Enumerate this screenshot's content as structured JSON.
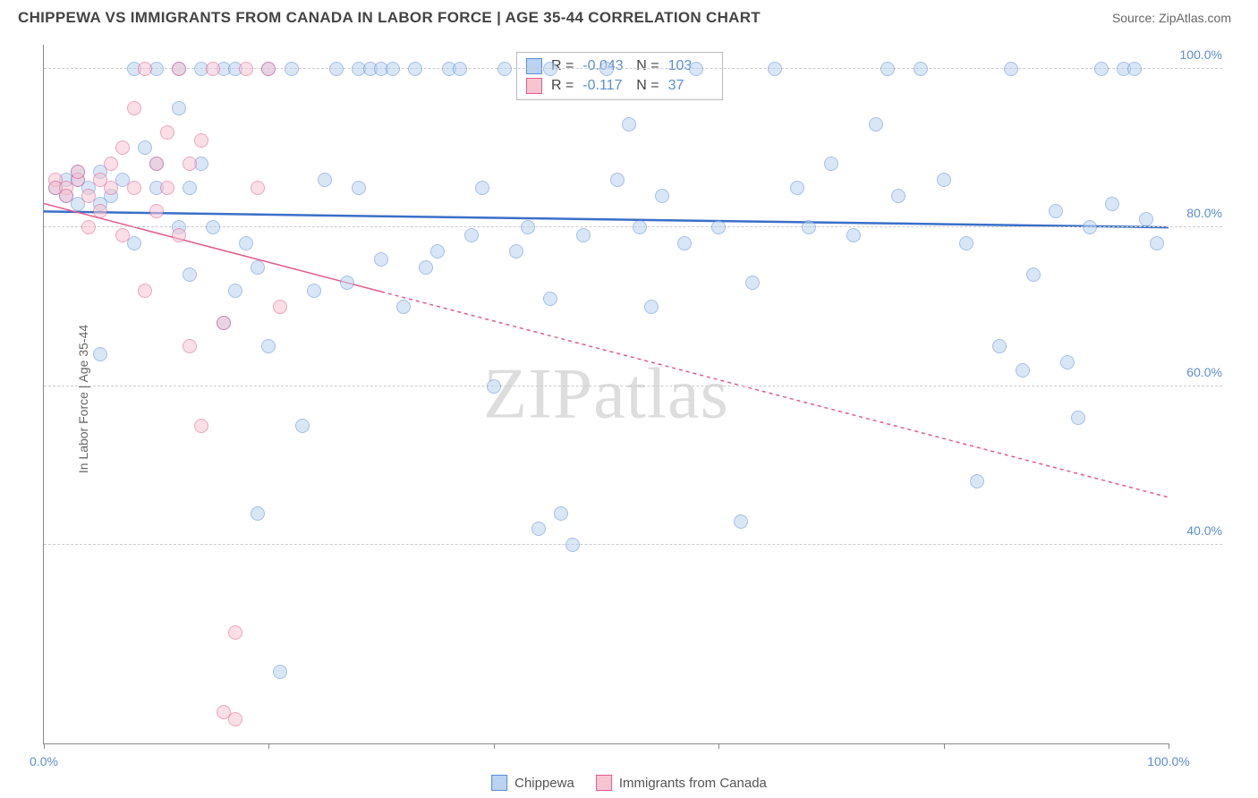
{
  "title": "CHIPPEWA VS IMMIGRANTS FROM CANADA IN LABOR FORCE | AGE 35-44 CORRELATION CHART",
  "source": "Source: ZipAtlas.com",
  "ylabel": "In Labor Force | Age 35-44",
  "watermark": "ZIPatlas",
  "xaxis": {
    "min": 0,
    "max": 100,
    "ticks": [
      0,
      20,
      40,
      60,
      80,
      100
    ],
    "end_labels": [
      "0.0%",
      "100.0%"
    ]
  },
  "yaxis": {
    "min": 15,
    "max": 103,
    "ticks": [
      40,
      60,
      80,
      100
    ],
    "tick_labels": [
      "40.0%",
      "60.0%",
      "80.0%",
      "100.0%"
    ]
  },
  "series": [
    {
      "name": "Chippewa",
      "fill": "#b9d3f0",
      "stroke": "#5b8dd6",
      "fill_opacity": 0.55,
      "marker_size": 16,
      "regression": {
        "y_at_x0": 82,
        "y_at_x100": 80,
        "color": "#3a6fc9",
        "width": 2.5,
        "dash": "none",
        "x_end": 100
      },
      "stats": {
        "R": "-0.043",
        "N": "103"
      },
      "points": [
        [
          1,
          85
        ],
        [
          2,
          86
        ],
        [
          2,
          84
        ],
        [
          3,
          86
        ],
        [
          3,
          83
        ],
        [
          3,
          87
        ],
        [
          4,
          85
        ],
        [
          5,
          83
        ],
        [
          5,
          87
        ],
        [
          5,
          64
        ],
        [
          6,
          84
        ],
        [
          7,
          86
        ],
        [
          8,
          78
        ],
        [
          8,
          100
        ],
        [
          9,
          90
        ],
        [
          10,
          100
        ],
        [
          10,
          88
        ],
        [
          10,
          85
        ],
        [
          12,
          100
        ],
        [
          12,
          80
        ],
        [
          12,
          95
        ],
        [
          13,
          85
        ],
        [
          13,
          74
        ],
        [
          14,
          88
        ],
        [
          14,
          100
        ],
        [
          15,
          80
        ],
        [
          16,
          100
        ],
        [
          16,
          68
        ],
        [
          17,
          100
        ],
        [
          17,
          72
        ],
        [
          18,
          78
        ],
        [
          19,
          44
        ],
        [
          19,
          75
        ],
        [
          20,
          100
        ],
        [
          20,
          65
        ],
        [
          21,
          24
        ],
        [
          22,
          100
        ],
        [
          23,
          55
        ],
        [
          24,
          72
        ],
        [
          25,
          86
        ],
        [
          26,
          100
        ],
        [
          27,
          73
        ],
        [
          28,
          100
        ],
        [
          28,
          85
        ],
        [
          29,
          100
        ],
        [
          30,
          100
        ],
        [
          30,
          76
        ],
        [
          31,
          100
        ],
        [
          32,
          70
        ],
        [
          33,
          100
        ],
        [
          34,
          75
        ],
        [
          35,
          77
        ],
        [
          36,
          100
        ],
        [
          37,
          100
        ],
        [
          38,
          79
        ],
        [
          39,
          85
        ],
        [
          40,
          60
        ],
        [
          41,
          100
        ],
        [
          42,
          77
        ],
        [
          43,
          80
        ],
        [
          44,
          42
        ],
        [
          45,
          100
        ],
        [
          45,
          71
        ],
        [
          46,
          44
        ],
        [
          47,
          40
        ],
        [
          48,
          79
        ],
        [
          50,
          100
        ],
        [
          51,
          86
        ],
        [
          52,
          93
        ],
        [
          53,
          80
        ],
        [
          54,
          70
        ],
        [
          55,
          84
        ],
        [
          57,
          78
        ],
        [
          58,
          100
        ],
        [
          60,
          80
        ],
        [
          62,
          43
        ],
        [
          63,
          73
        ],
        [
          65,
          100
        ],
        [
          67,
          85
        ],
        [
          68,
          80
        ],
        [
          70,
          88
        ],
        [
          72,
          79
        ],
        [
          74,
          93
        ],
        [
          75,
          100
        ],
        [
          76,
          84
        ],
        [
          78,
          100
        ],
        [
          80,
          86
        ],
        [
          82,
          78
        ],
        [
          83,
          48
        ],
        [
          85,
          65
        ],
        [
          86,
          100
        ],
        [
          87,
          62
        ],
        [
          88,
          74
        ],
        [
          90,
          82
        ],
        [
          91,
          63
        ],
        [
          92,
          56
        ],
        [
          93,
          80
        ],
        [
          94,
          100
        ],
        [
          95,
          83
        ],
        [
          96,
          100
        ],
        [
          97,
          100
        ],
        [
          98,
          81
        ],
        [
          99,
          78
        ]
      ]
    },
    {
      "name": "Immigrants from Canada",
      "fill": "#f6c5d2",
      "stroke": "#e55a8a",
      "fill_opacity": 0.55,
      "marker_size": 16,
      "regression": {
        "y_at_x0": 83,
        "y_at_x100": 46,
        "color": "#e55a8a",
        "width": 1.5,
        "dash": "4,4",
        "x_end": 100,
        "solid_until": 30
      },
      "stats": {
        "R": "-0.117",
        "N": "37"
      },
      "points": [
        [
          1,
          86
        ],
        [
          1,
          85
        ],
        [
          2,
          85
        ],
        [
          2,
          84
        ],
        [
          3,
          86
        ],
        [
          3,
          87
        ],
        [
          4,
          84
        ],
        [
          4,
          80
        ],
        [
          5,
          86
        ],
        [
          5,
          82
        ],
        [
          6,
          85
        ],
        [
          6,
          88
        ],
        [
          7,
          79
        ],
        [
          7,
          90
        ],
        [
          8,
          85
        ],
        [
          8,
          95
        ],
        [
          9,
          100
        ],
        [
          9,
          72
        ],
        [
          10,
          82
        ],
        [
          10,
          88
        ],
        [
          11,
          85
        ],
        [
          11,
          92
        ],
        [
          12,
          79
        ],
        [
          12,
          100
        ],
        [
          13,
          88
        ],
        [
          13,
          65
        ],
        [
          14,
          91
        ],
        [
          14,
          55
        ],
        [
          15,
          100
        ],
        [
          16,
          68
        ],
        [
          16,
          19
        ],
        [
          17,
          29
        ],
        [
          17,
          18
        ],
        [
          18,
          100
        ],
        [
          19,
          85
        ],
        [
          20,
          100
        ],
        [
          21,
          70
        ]
      ]
    }
  ],
  "legend": {
    "items": [
      "Chippewa",
      "Immigrants from Canada"
    ]
  },
  "stats_box": {
    "rows": [
      {
        "swatch_fill": "#b9d3f0",
        "swatch_stroke": "#5b8dd6",
        "R_label": "R =",
        "R": "-0.043",
        "N_label": "N =",
        "N": "103"
      },
      {
        "swatch_fill": "#f6c5d2",
        "swatch_stroke": "#e55a8a",
        "R_label": "R =",
        "R": "-0.117",
        "N_label": "N =",
        "N": "37"
      }
    ]
  },
  "colors": {
    "grid": "#cccccc",
    "axis": "#888888",
    "text": "#555555",
    "tick_text": "#5b8dd6"
  }
}
